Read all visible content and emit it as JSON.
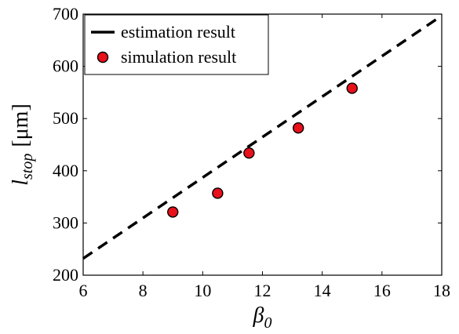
{
  "chart_data": {
    "type": "scatter",
    "xlabel": {
      "symbol": "β",
      "subscript": "0"
    },
    "ylabel": {
      "symbol": "l",
      "subscript": "stop",
      "unit": "[μm]"
    },
    "xlim": [
      6,
      18
    ],
    "ylim": [
      200,
      700
    ],
    "xticks": [
      "6",
      "8",
      "10",
      "12",
      "14",
      "16",
      "18"
    ],
    "yticks": [
      "200",
      "300",
      "400",
      "500",
      "600",
      "700"
    ],
    "grid": false,
    "legend_position": "top-left",
    "series": [
      {
        "name": "estimation result",
        "kind": "dashed-line",
        "color": "#000000",
        "points": [
          [
            6,
            232
          ],
          [
            18,
            697
          ]
        ]
      },
      {
        "name": "simulation result",
        "kind": "markers",
        "color": "#e8101a",
        "edge_color": "#000000",
        "points": [
          [
            9.0,
            321
          ],
          [
            10.5,
            357
          ],
          [
            11.55,
            434
          ],
          [
            13.2,
            482
          ],
          [
            15.0,
            558
          ]
        ]
      }
    ]
  }
}
